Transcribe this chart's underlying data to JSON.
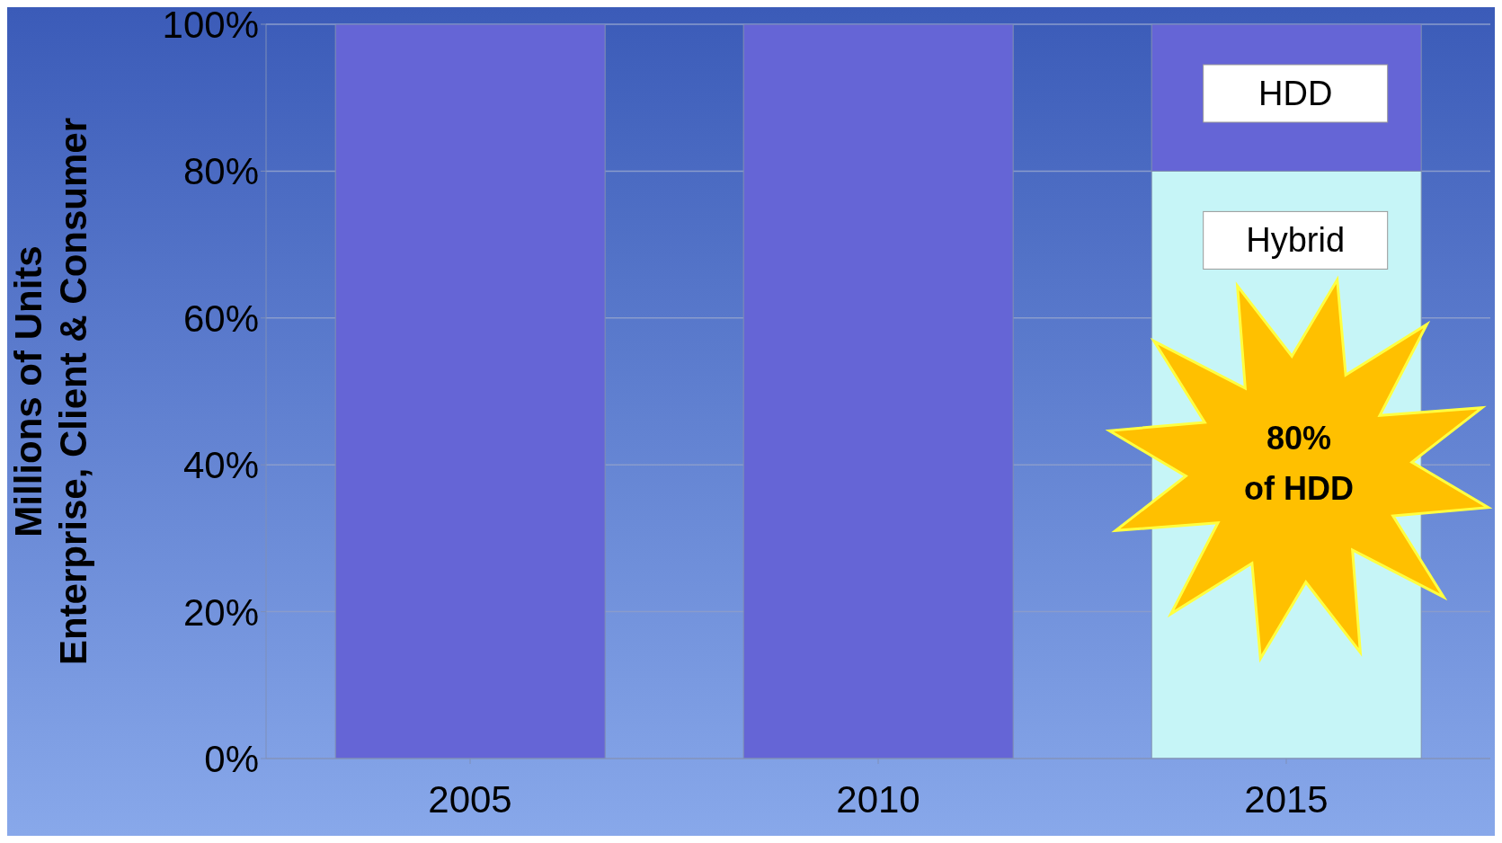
{
  "chart_data": {
    "type": "bar",
    "stacked": true,
    "ylabel": "Millions of Units\nEnterprise, Client & Consumer",
    "categories": [
      "2005",
      "2010",
      "2015"
    ],
    "series": [
      {
        "name": "Hybrid",
        "color": "#c6f5f7",
        "values": [
          0,
          0,
          80
        ]
      },
      {
        "name": "HDD",
        "color": "#6565d6",
        "values": [
          100,
          100,
          20
        ]
      }
    ],
    "ylim": [
      0,
      100
    ],
    "yticks": [
      {
        "value": 0,
        "label": "0%"
      },
      {
        "value": 20,
        "label": "20%"
      },
      {
        "value": 40,
        "label": "40%"
      },
      {
        "value": 60,
        "label": "60%"
      },
      {
        "value": 80,
        "label": "80%"
      },
      {
        "value": 100,
        "label": "100%"
      }
    ],
    "grid": "y",
    "legend": false,
    "annotations": [
      "80%\nof HDD"
    ]
  }
}
